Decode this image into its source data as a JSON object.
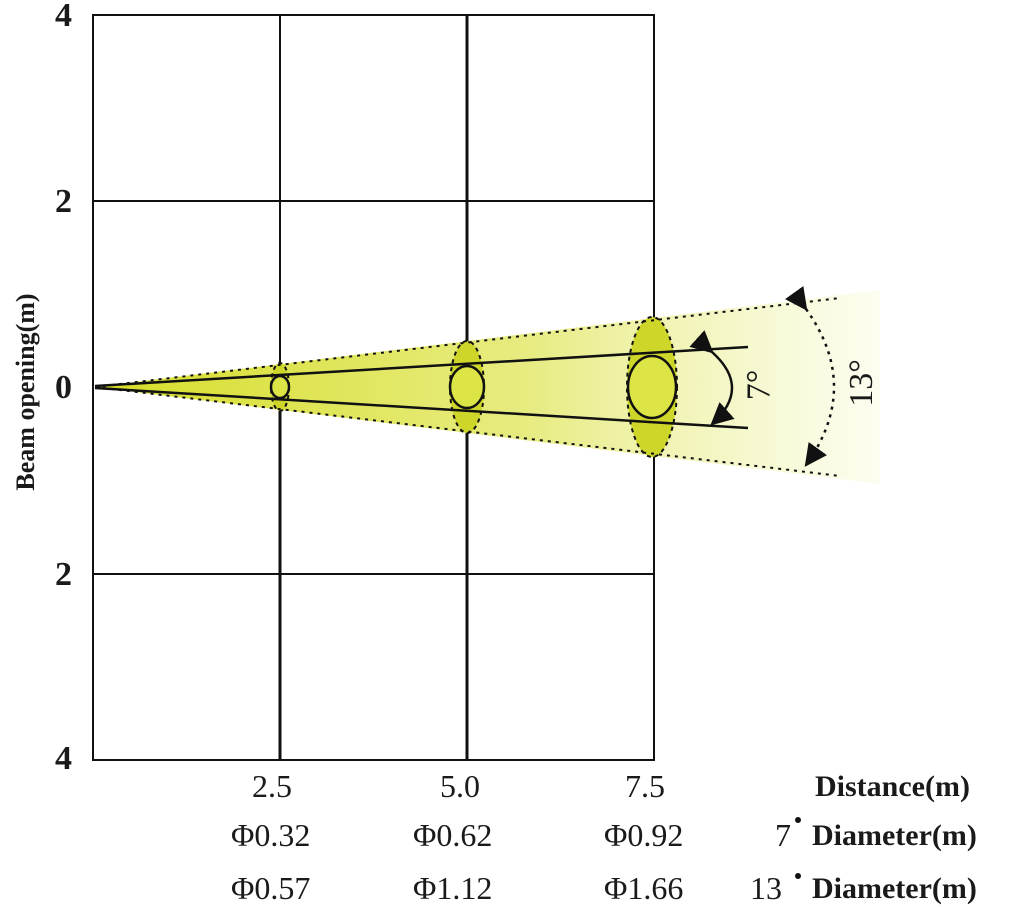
{
  "axis": {
    "y_title": "Beam opening(m)",
    "y_ticks": [
      "4",
      "2",
      "0",
      "2",
      "4"
    ]
  },
  "distances": [
    "2.5",
    "5.0",
    "7.5"
  ],
  "rows": {
    "distance_title": "Distance(m)",
    "d7_prefix": "7",
    "d7_title": "Diameter(m)",
    "d13_prefix": "13",
    "d13_title": "Diameter(m)",
    "d7_values": [
      "Φ0.32",
      "Φ0.62",
      "Φ0.92"
    ],
    "d13_values": [
      "Φ0.57",
      "Φ1.12",
      "Φ1.66"
    ]
  },
  "angles": {
    "narrow": "7°",
    "wide": "13°"
  },
  "colors": {
    "beam": "#d9e03a",
    "line": "#111111",
    "spot": "#dde445"
  }
}
